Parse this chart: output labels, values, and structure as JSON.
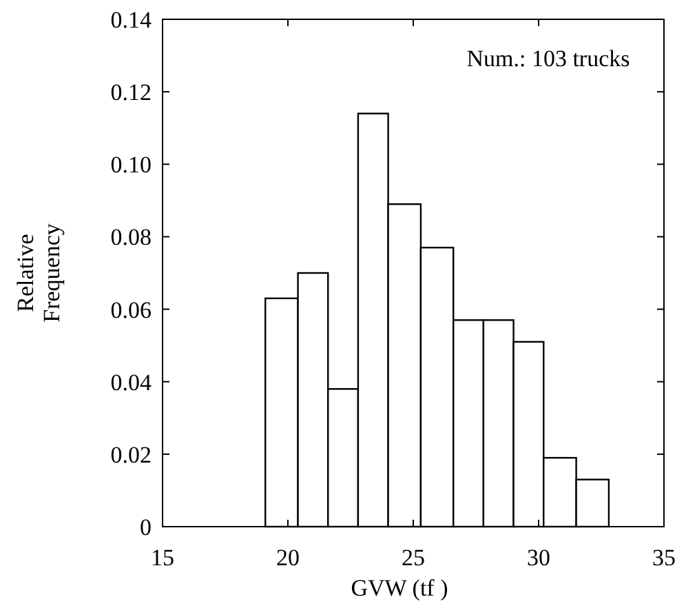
{
  "chart_data": {
    "type": "histogram",
    "xlabel": "GVW (tf )",
    "ylabel": "Relative\nFrequency",
    "bins": [
      19.1,
      20.4,
      21.6,
      22.8,
      24.0,
      25.3,
      26.6,
      27.8,
      29.0,
      30.2,
      31.5,
      32.8
    ],
    "values": [
      0.063,
      0.07,
      0.038,
      0.114,
      0.089,
      0.077,
      0.057,
      0.057,
      0.051,
      0.019,
      0.013
    ],
    "color": "#ffffff",
    "xlim": [
      15,
      35
    ],
    "xticks": [
      15,
      20,
      25,
      30,
      35
    ],
    "ylim": [
      0,
      0.14
    ],
    "yticks": [
      0,
      {
        "value": 0.02,
        "label": "0.02"
      },
      {
        "value": 0.04,
        "label": "0.04"
      },
      {
        "value": 0.06,
        "label": "0.06"
      },
      {
        "value": 0.08,
        "label": "0.08"
      },
      {
        "value": 0.1,
        "label": "0.10"
      },
      {
        "value": 0.12,
        "label": "0.12"
      },
      {
        "value": 0.14,
        "label": "0.14"
      }
    ],
    "annotations": [
      "Num.: 103 trucks"
    ]
  }
}
